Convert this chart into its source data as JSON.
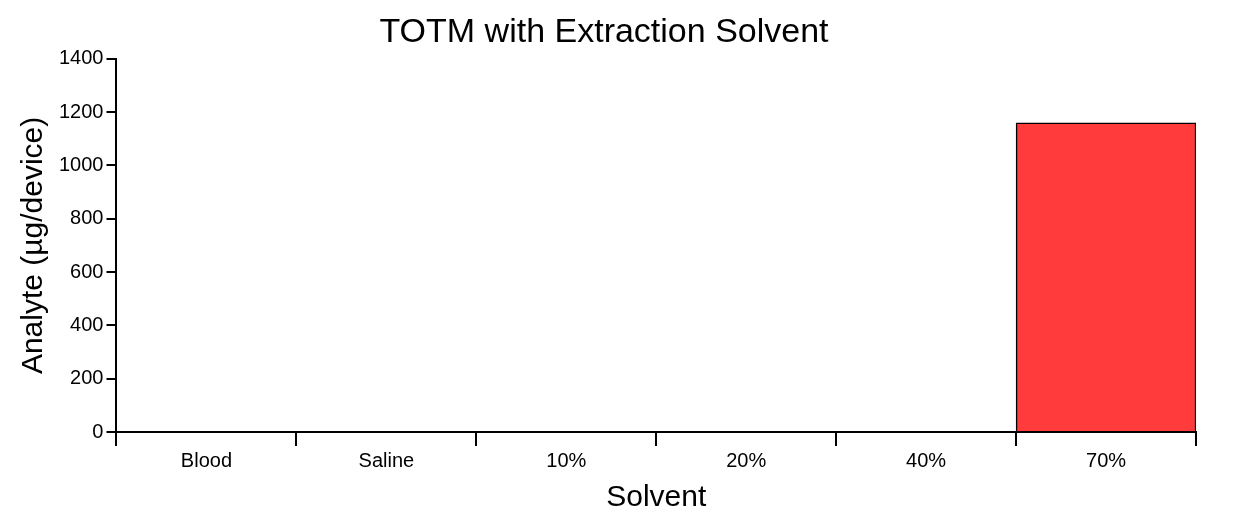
{
  "chart_data": {
    "type": "bar",
    "title": "TOTM with Extraction Solvent",
    "xlabel": "Solvent",
    "ylabel": "Analyte (µg/device)",
    "categories": [
      "Blood",
      "Saline",
      "10%",
      "20%",
      "40%",
      "70%"
    ],
    "values": [
      0,
      0,
      0,
      0,
      0,
      1160
    ],
    "color": "#ff3b3b",
    "ylim": [
      0,
      1400
    ],
    "yticks": [
      0,
      200,
      400,
      600,
      800,
      1000,
      1200,
      1400
    ],
    "grid": false,
    "legend": false
  }
}
